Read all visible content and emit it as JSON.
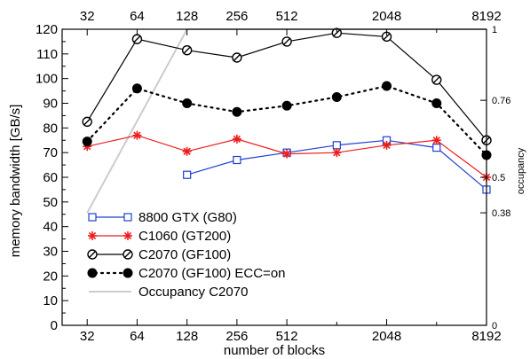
{
  "chart_data": {
    "type": "line",
    "xlabel": "number of blocks",
    "ylabel": "memory bandwidth [GB/s]",
    "y2label": "occupancy",
    "x_scale": "log2",
    "xlim": [
      22.6,
      8192
    ],
    "ylim": [
      0,
      120
    ],
    "y2lim": [
      0,
      1
    ],
    "x_ticks_bottom": [
      "32",
      "64",
      "128",
      "256",
      "512",
      "2048",
      "8192"
    ],
    "x_ticks_top": [
      "32",
      "64",
      "128",
      "256",
      "512",
      "2048",
      "8192"
    ],
    "x_tick_values": [
      32,
      64,
      128,
      256,
      512,
      2048,
      8192
    ],
    "y_ticks": [
      "0",
      "10",
      "20",
      "30",
      "40",
      "50",
      "60",
      "70",
      "80",
      "90",
      "100",
      "110",
      "120"
    ],
    "y_tick_values": [
      0,
      10,
      20,
      30,
      40,
      50,
      60,
      70,
      80,
      90,
      100,
      110,
      120
    ],
    "y2_ticks": [
      "0",
      "0.38",
      "0.5",
      "0.76",
      "1"
    ],
    "y2_tick_values": [
      0,
      0.38,
      0.5,
      0.76,
      1
    ],
    "grid": false,
    "legend_position": "bottom-left",
    "series": [
      {
        "name": "8800 GTX (G80)",
        "axis": "left",
        "color": "#1f3fd0",
        "marker": "open-square",
        "line": "solid",
        "x": [
          128,
          256,
          512,
          1024,
          2048,
          4096,
          8192
        ],
        "y": [
          61,
          67,
          70,
          73,
          75,
          72,
          55
        ]
      },
      {
        "name": "C1060 (GT200)",
        "axis": "left",
        "color": "#ee1c1c",
        "marker": "asterisk",
        "line": "solid",
        "x": [
          32,
          64,
          128,
          256,
          512,
          1024,
          2048,
          4096,
          8192
        ],
        "y": [
          72.5,
          77,
          70.5,
          75.5,
          69.5,
          70,
          73,
          75,
          60
        ]
      },
      {
        "name": "C2070 (GF100)",
        "axis": "left",
        "color": "#000000",
        "marker": "slashed-circle",
        "line": "solid",
        "x": [
          32,
          64,
          128,
          256,
          512,
          1024,
          2048,
          4096,
          8192
        ],
        "y": [
          82.5,
          116,
          111.5,
          108.5,
          115,
          118.5,
          117,
          99.5,
          75
        ]
      },
      {
        "name": "C2070 (GF100) ECC=on",
        "axis": "left",
        "color": "#000000",
        "marker": "filled-circle",
        "line": "dotted",
        "x": [
          32,
          64,
          128,
          256,
          512,
          1024,
          2048,
          4096,
          8192
        ],
        "y": [
          74.5,
          96,
          90,
          86.5,
          89,
          92.5,
          97,
          90,
          69
        ]
      },
      {
        "name": "Occupancy C2070",
        "axis": "right",
        "color": "#cccccc",
        "marker": "none",
        "line": "solid",
        "x": [
          32,
          128,
          8192
        ],
        "y": [
          0.38,
          1,
          1
        ]
      }
    ]
  }
}
